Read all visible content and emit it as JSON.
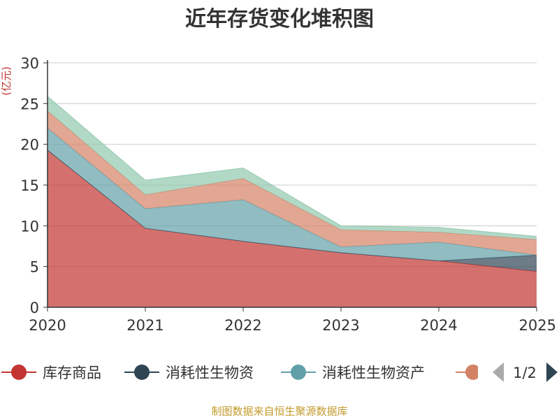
{
  "chart_data": {
    "type": "area",
    "title": "近年存货变化堆积图",
    "ylabel": "(亿元)",
    "xlabel": "",
    "ylim": [
      0,
      30
    ],
    "y_ticks": [
      "0",
      "5",
      "10",
      "15",
      "20",
      "25",
      "30"
    ],
    "categories": [
      "2020",
      "2021",
      "2022",
      "2023",
      "2024",
      "2025"
    ],
    "stacked": true,
    "grid": true,
    "series": [
      {
        "name": "库存商品",
        "color": "#c23531",
        "values": [
          19.3,
          9.7,
          8.1,
          6.7,
          5.7,
          4.4
        ]
      },
      {
        "name": "消耗性生物资",
        "color": "#2f4554",
        "values": [
          0.0,
          0.0,
          0.0,
          0.0,
          0.0,
          2.0
        ]
      },
      {
        "name": "消耗性生物资产",
        "color": "#61a0a8",
        "values": [
          2.7,
          2.4,
          5.1,
          0.7,
          2.3,
          0.0
        ]
      },
      {
        "name": "",
        "color": "#d48265",
        "values": [
          2.1,
          1.7,
          2.6,
          2.1,
          1.2,
          1.9
        ]
      },
      {
        "name": "",
        "color": "#91c7ae",
        "values": [
          1.8,
          1.8,
          1.3,
          0.5,
          0.6,
          0.4
        ]
      }
    ],
    "legend": {
      "visible_items": [
        "库存商品",
        "消耗性生物资",
        "消耗性生物资产"
      ],
      "position": "bottom",
      "page": "1/2"
    },
    "source": "制图数据来自恒生聚源数据库"
  }
}
